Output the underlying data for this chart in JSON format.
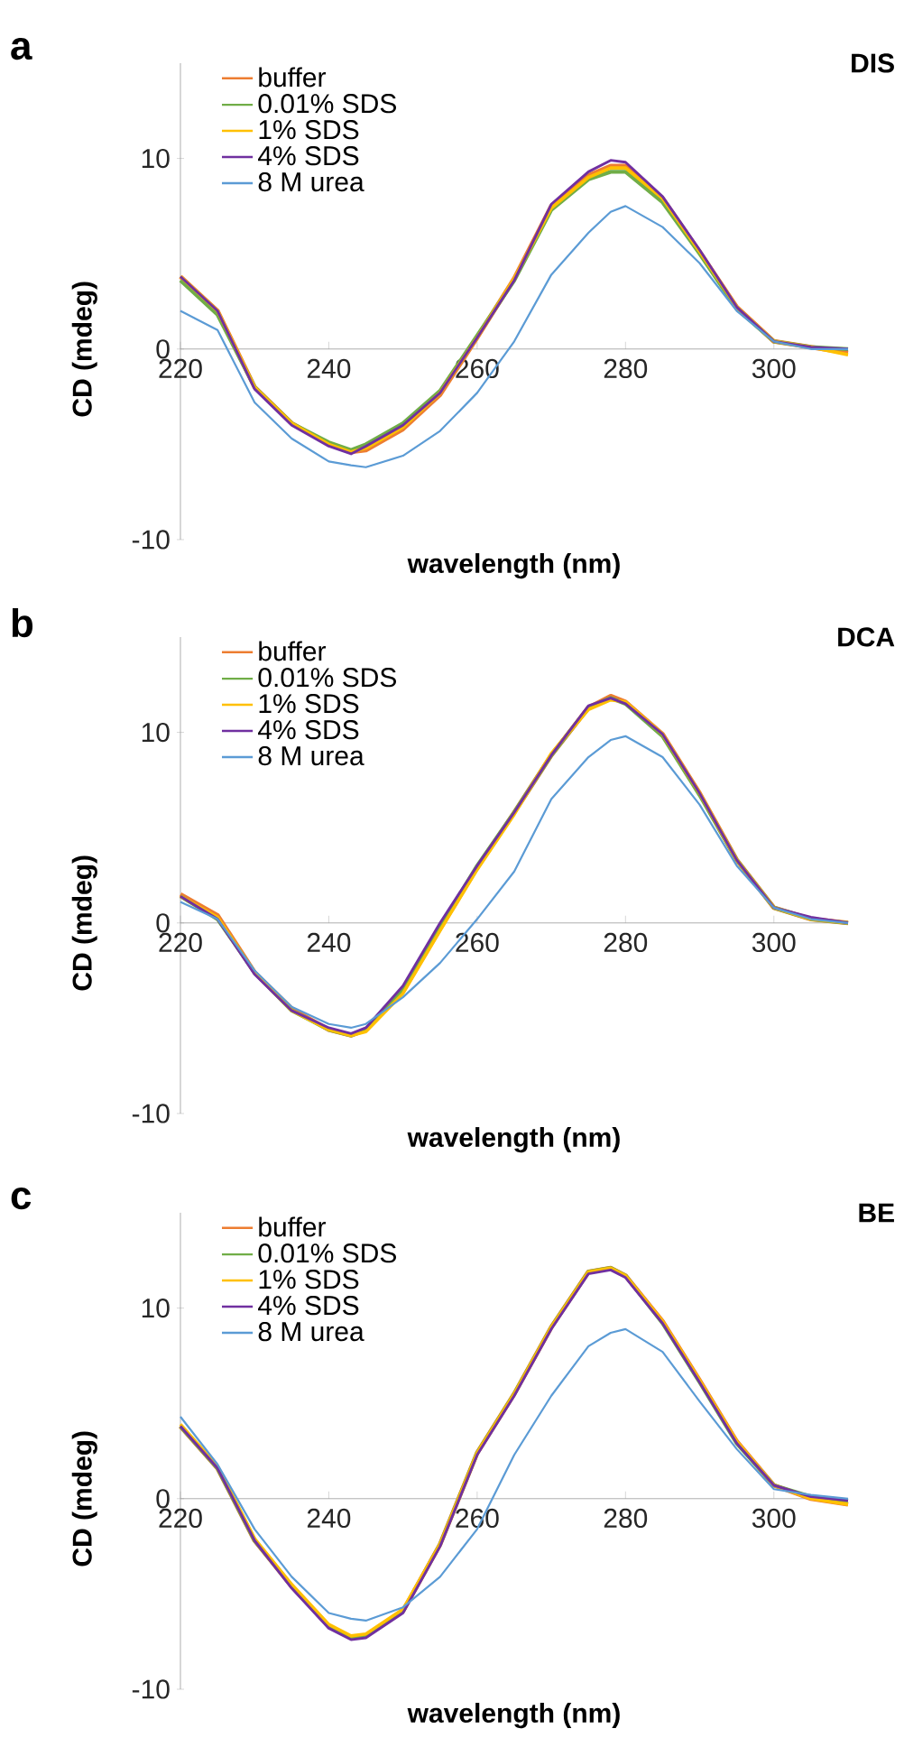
{
  "chart_data": [
    {
      "type": "line",
      "title": "DIS",
      "annotations": [
        "a"
      ],
      "xlabel": "wavelength (nm)",
      "ylabel": "CD (mdeg)",
      "xlim": [
        220,
        310
      ],
      "ylim": [
        -10,
        15
      ],
      "xticks": [
        220,
        240,
        260,
        280,
        300
      ],
      "yticks": [
        -10,
        0,
        10
      ],
      "legend": "top left",
      "x": [
        220,
        225,
        230,
        235,
        240,
        243,
        245,
        250,
        255,
        260,
        265,
        270,
        275,
        278,
        280,
        285,
        290,
        295,
        300,
        305,
        310
      ],
      "series": [
        {
          "name": "buffer",
          "color": "#ed7d31",
          "values": [
            3.8,
            2.0,
            -2.0,
            -3.9,
            -5.0,
            -5.4,
            -5.3,
            -4.2,
            -2.4,
            0.6,
            3.7,
            7.5,
            9.1,
            9.6,
            9.6,
            7.9,
            5.1,
            2.2,
            0.4,
            0.1,
            -0.2
          ]
        },
        {
          "name": "0.01% SDS",
          "color": "#70ad47",
          "values": [
            3.6,
            1.8,
            -2.0,
            -3.9,
            -4.9,
            -5.3,
            -5.0,
            -3.9,
            -2.2,
            0.7,
            3.6,
            7.3,
            8.9,
            9.3,
            9.3,
            7.7,
            5.0,
            2.1,
            0.4,
            0.1,
            0.0
          ]
        },
        {
          "name": "1% SDS",
          "color": "#ffc000",
          "values": [
            3.8,
            2.0,
            -2.0,
            -3.9,
            -5.0,
            -5.4,
            -5.2,
            -4.1,
            -2.3,
            0.6,
            3.7,
            7.4,
            9.0,
            9.5,
            9.5,
            7.9,
            5.1,
            2.2,
            0.4,
            0.1,
            -0.3
          ]
        },
        {
          "name": "4% SDS",
          "color": "#7030a0",
          "values": [
            3.8,
            2.0,
            -2.1,
            -4.0,
            -5.1,
            -5.5,
            -5.1,
            -4.0,
            -2.3,
            0.6,
            3.6,
            7.6,
            9.3,
            9.9,
            9.8,
            8.0,
            5.2,
            2.2,
            0.4,
            0.1,
            0.0
          ]
        },
        {
          "name": "8 M urea",
          "color": "#5b9bd5",
          "values": [
            2.0,
            1.0,
            -2.8,
            -4.7,
            -5.9,
            -6.1,
            -6.2,
            -5.6,
            -4.3,
            -2.3,
            0.4,
            3.9,
            6.1,
            7.2,
            7.5,
            6.4,
            4.5,
            2.0,
            0.4,
            0.0,
            0.0
          ]
        }
      ]
    },
    {
      "type": "line",
      "title": "DCA",
      "annotations": [
        "b"
      ],
      "xlabel": "wavelength (nm)",
      "ylabel": "CD (mdeg)",
      "xlim": [
        220,
        310
      ],
      "ylim": [
        -10,
        15
      ],
      "xticks": [
        220,
        240,
        260,
        280,
        300
      ],
      "yticks": [
        -10,
        0,
        10
      ],
      "legend": "top left",
      "x": [
        220,
        225,
        230,
        235,
        240,
        243,
        245,
        250,
        255,
        260,
        265,
        270,
        275,
        278,
        280,
        285,
        290,
        295,
        300,
        305,
        310
      ],
      "series": [
        {
          "name": "buffer",
          "color": "#ed7d31",
          "values": [
            1.5,
            0.4,
            -2.6,
            -4.5,
            -5.6,
            -5.9,
            -5.6,
            -3.6,
            -0.3,
            2.9,
            5.8,
            8.8,
            11.3,
            11.9,
            11.6,
            9.9,
            6.8,
            3.3,
            0.8,
            0.2,
            0.0
          ]
        },
        {
          "name": "0.01% SDS",
          "color": "#70ad47",
          "values": [
            1.4,
            0.2,
            -2.6,
            -4.6,
            -5.6,
            -5.9,
            -5.6,
            -3.5,
            -0.2,
            3.0,
            5.8,
            8.8,
            11.3,
            11.8,
            11.5,
            9.8,
            6.7,
            3.3,
            0.8,
            0.2,
            0.0
          ]
        },
        {
          "name": "1% SDS",
          "color": "#ffc000",
          "values": [
            1.4,
            0.3,
            -2.6,
            -4.6,
            -5.6,
            -5.9,
            -5.7,
            -3.7,
            -0.4,
            2.8,
            5.7,
            8.9,
            11.2,
            11.7,
            11.6,
            9.9,
            6.8,
            3.3,
            0.8,
            0.2,
            0.0
          ]
        },
        {
          "name": "4% SDS",
          "color": "#7030a0",
          "values": [
            1.4,
            0.2,
            -2.7,
            -4.6,
            -5.5,
            -5.8,
            -5.5,
            -3.3,
            0.0,
            3.0,
            5.8,
            8.8,
            11.4,
            11.8,
            11.5,
            9.9,
            6.8,
            3.3,
            0.8,
            0.3,
            0.0
          ]
        },
        {
          "name": "8 M urea",
          "color": "#5b9bd5",
          "values": [
            1.1,
            0.2,
            -2.5,
            -4.4,
            -5.3,
            -5.5,
            -5.3,
            -3.9,
            -2.1,
            0.2,
            2.7,
            6.5,
            8.7,
            9.6,
            9.8,
            8.7,
            6.2,
            3.0,
            0.8,
            0.2,
            0.0
          ]
        }
      ]
    },
    {
      "type": "line",
      "title": "BE",
      "annotations": [
        "c"
      ],
      "xlabel": "wavelength (nm)",
      "ylabel": "CD (mdeg)",
      "xlim": [
        220,
        310
      ],
      "ylim": [
        -10,
        15
      ],
      "xticks": [
        220,
        240,
        260,
        280,
        300
      ],
      "yticks": [
        -10,
        0,
        10
      ],
      "legend": "top left",
      "x": [
        220,
        225,
        230,
        235,
        240,
        243,
        245,
        250,
        255,
        260,
        265,
        270,
        275,
        278,
        280,
        285,
        290,
        295,
        300,
        305,
        310
      ],
      "series": [
        {
          "name": "buffer",
          "color": "#ed7d31",
          "values": [
            3.8,
            1.6,
            -2.2,
            -4.6,
            -6.7,
            -7.3,
            -7.2,
            -5.9,
            -2.4,
            2.4,
            5.5,
            9.0,
            11.9,
            12.1,
            11.7,
            9.3,
            6.2,
            3.0,
            0.7,
            0.0,
            -0.3
          ]
        },
        {
          "name": "0.01% SDS",
          "color": "#70ad47",
          "values": [
            3.8,
            1.6,
            -2.2,
            -4.6,
            -6.7,
            -7.3,
            -7.2,
            -5.9,
            -2.4,
            2.4,
            5.5,
            9.0,
            11.9,
            12.1,
            11.7,
            9.2,
            6.1,
            2.9,
            0.7,
            0.1,
            -0.1
          ]
        },
        {
          "name": "1% SDS",
          "color": "#ffc000",
          "values": [
            3.9,
            1.7,
            -2.1,
            -4.5,
            -6.6,
            -7.2,
            -7.1,
            -5.8,
            -2.4,
            2.4,
            5.5,
            9.0,
            11.9,
            12.1,
            11.7,
            9.3,
            6.2,
            3.0,
            0.7,
            0.0,
            -0.3
          ]
        },
        {
          "name": "4% SDS",
          "color": "#7030a0",
          "values": [
            3.8,
            1.6,
            -2.2,
            -4.7,
            -6.8,
            -7.4,
            -7.3,
            -6.0,
            -2.5,
            2.3,
            5.4,
            8.9,
            11.8,
            12.0,
            11.6,
            9.2,
            6.1,
            2.9,
            0.7,
            0.1,
            -0.1
          ]
        },
        {
          "name": "8 M urea",
          "color": "#5b9bd5",
          "values": [
            4.3,
            1.8,
            -1.6,
            -4.1,
            -6.0,
            -6.3,
            -6.4,
            -5.7,
            -4.1,
            -1.6,
            2.3,
            5.4,
            8.0,
            8.7,
            8.9,
            7.7,
            5.1,
            2.6,
            0.5,
            0.2,
            0.0
          ]
        }
      ]
    }
  ]
}
